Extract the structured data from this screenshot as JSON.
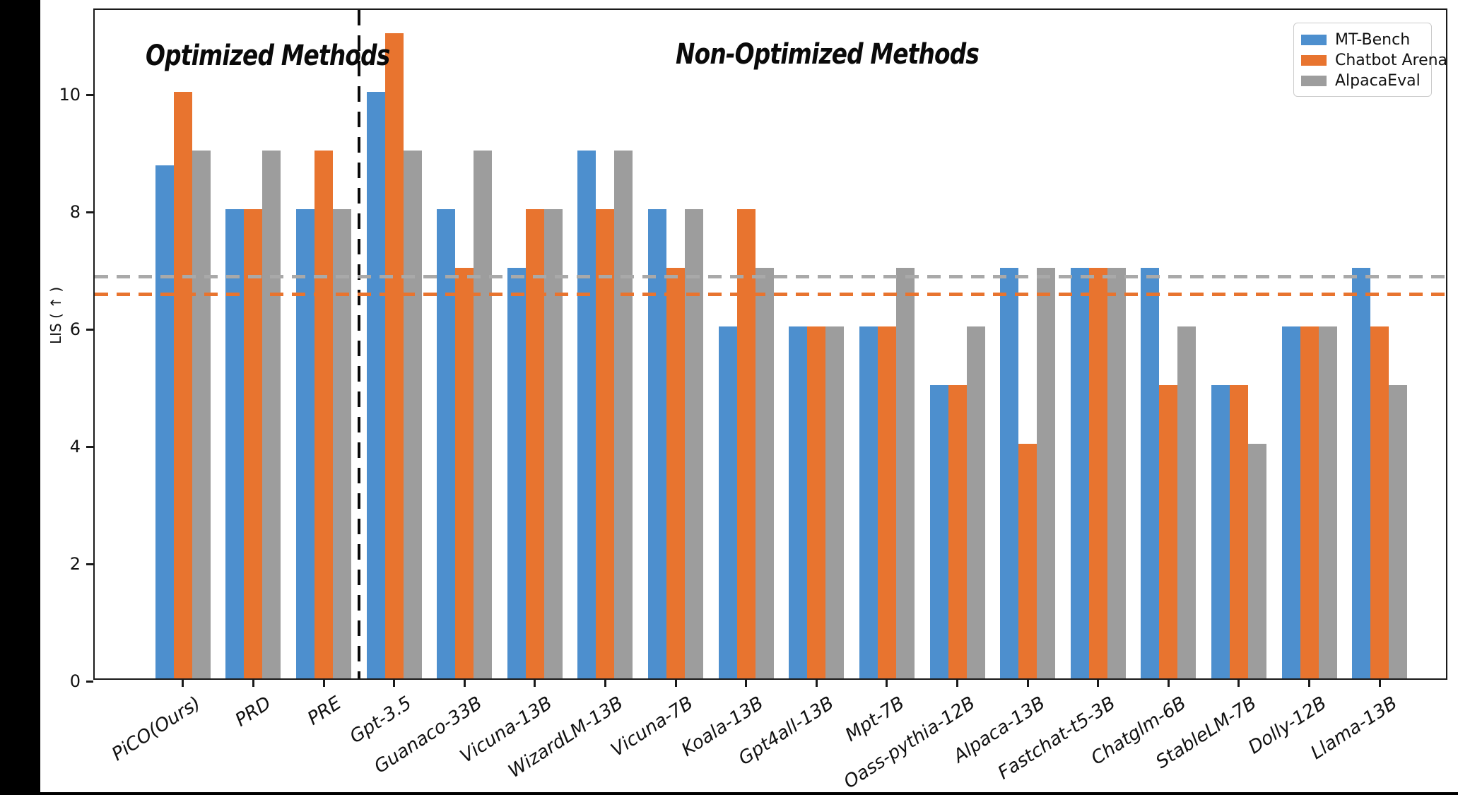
{
  "chart_data": {
    "type": "bar",
    "title": "",
    "xlabel": "",
    "ylabel": "LIS ( ↑ )",
    "ylim": [
      0,
      11.45
    ],
    "yticks": [
      0,
      2,
      4,
      6,
      8,
      10
    ],
    "grid": false,
    "legend_position": "upper right",
    "categories": [
      "PiCO(Ours)",
      "PRD",
      "PRE",
      "Gpt-3.5",
      "Guanaco-33B",
      "Vicuna-13B",
      "WizardLM-13B",
      "Vicuna-7B",
      "Koala-13B",
      "Gpt4all-13B",
      "Mpt-7B",
      "Oass-pythia-12B",
      "Alpaca-13B",
      "Fastchat-t5-3B",
      "Chatglm-6B",
      "StableLM-7B",
      "Dolly-12B",
      "Llama-13B"
    ],
    "series": [
      {
        "name": "MT-Bench",
        "color": "#4D8FCE",
        "values": [
          8.75,
          8,
          8,
          10,
          8,
          7,
          9,
          8,
          6,
          6,
          6,
          5,
          7,
          7,
          7,
          5,
          6,
          7
        ]
      },
      {
        "name": "Chatbot Arena",
        "color": "#E8742F",
        "values": [
          10,
          8,
          9,
          11,
          7,
          8,
          8,
          7,
          8,
          6,
          6,
          5,
          4,
          7,
          5,
          5,
          6,
          6
        ]
      },
      {
        "name": "AlpacaEval",
        "color": "#9D9D9D",
        "values": [
          9,
          9,
          8,
          9,
          9,
          8,
          9,
          8,
          7,
          6,
          7,
          6,
          7,
          7,
          6,
          4,
          6,
          5
        ]
      }
    ],
    "reference_lines": [
      {
        "name": "alpacaeval-average",
        "value": 6.9,
        "color": "#A9A9A9"
      },
      {
        "name": "chatbot-arena-average",
        "value": 6.6,
        "color": "#E8742F"
      }
    ],
    "separator_before_category": "Gpt-3.5",
    "section_labels": {
      "optimized": "Optimized Methods",
      "non_optimized": "Non-Optimized Methods"
    }
  }
}
